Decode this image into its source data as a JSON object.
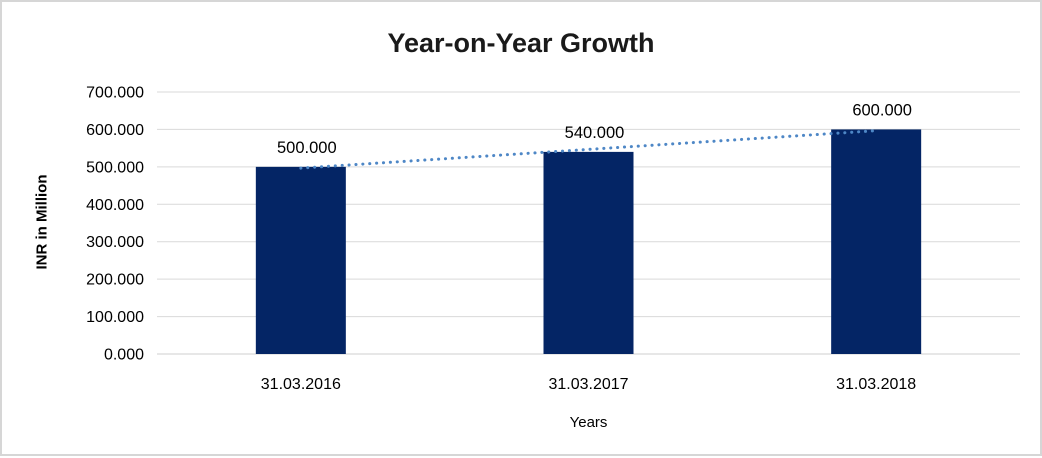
{
  "chart_data": {
    "type": "bar",
    "title": "Year-on-Year Growth",
    "xlabel": "Years",
    "ylabel": "INR in Million",
    "categories": [
      "31.03.2016",
      "31.03.2017",
      "31.03.2018"
    ],
    "values": [
      500,
      540,
      600
    ],
    "value_labels": [
      "500.000",
      "540.000",
      "600.000"
    ],
    "ylim": [
      0,
      700
    ],
    "ytick_values": [
      0,
      100,
      200,
      300,
      400,
      500,
      600,
      700
    ],
    "ytick_labels": [
      "0.000",
      "100.000",
      "200.000",
      "300.000",
      "400.000",
      "500.000",
      "600.000",
      "700.000"
    ],
    "grid": "horizontal",
    "legend": "none",
    "trendline": {
      "type": "linear",
      "style": "dotted",
      "fitted_values": [
        496.67,
        546.67,
        596.67
      ],
      "color": "#4e87c6"
    },
    "colors": {
      "bar": "#042565",
      "gridline": "#d9d9d9",
      "axis_line": "#cfcfcf",
      "label_text": "#000000",
      "title_text": "#1a1a1a"
    }
  }
}
